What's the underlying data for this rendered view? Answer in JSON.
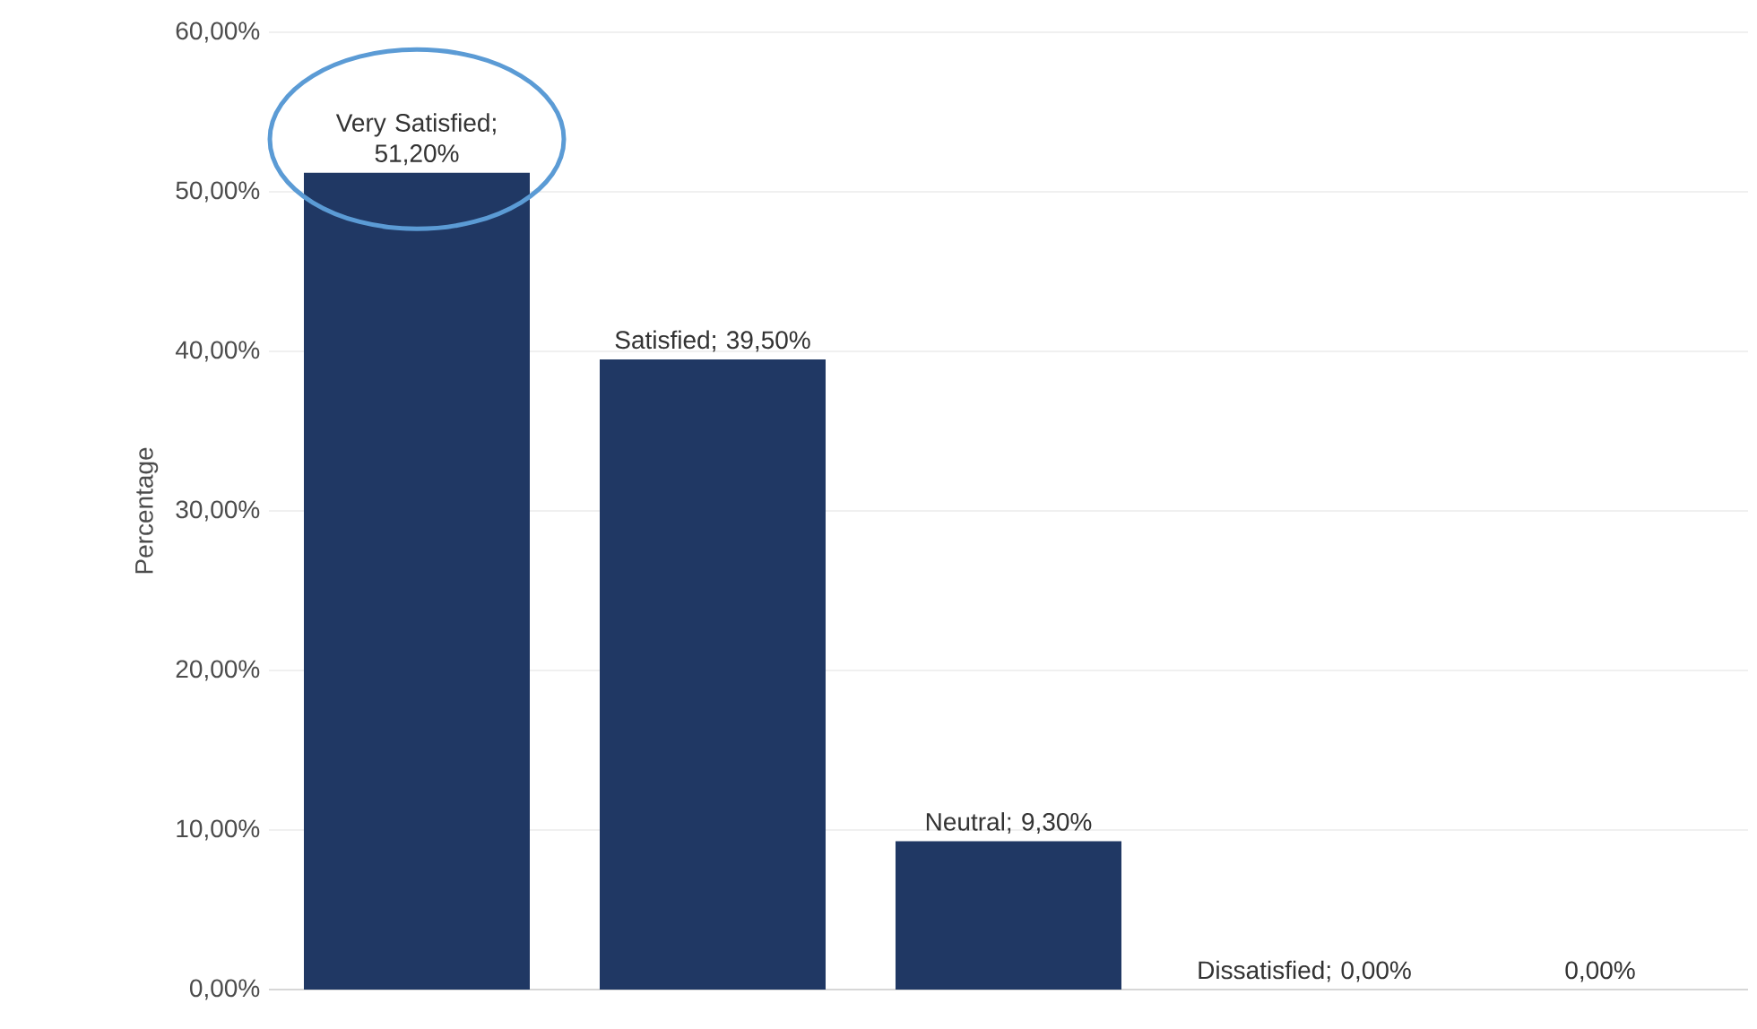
{
  "chart_data": {
    "type": "bar",
    "ylabel": "Percentage",
    "categories": [
      null,
      null,
      null,
      null,
      null
    ],
    "values": [
      51.2,
      39.5,
      9.3,
      0,
      0
    ],
    "value_labels": [
      "Very Satisfied; 51,20%",
      "Satisfied; 39,50%",
      "Neutral; 9,30%",
      "Dissatisfied; 0,00%",
      "0,00%"
    ],
    "color": "#203864",
    "ylim": [
      0,
      60
    ],
    "yticks": [
      {
        "value": 0,
        "label": "0,00%"
      },
      {
        "value": 10,
        "label": "10,00%"
      },
      {
        "value": 20,
        "label": "20,00%"
      },
      {
        "value": 30,
        "label": "30,00%"
      },
      {
        "value": 40,
        "label": "40,00%"
      },
      {
        "value": 50,
        "label": "50,00%"
      },
      {
        "value": 60,
        "label": "60,00%"
      }
    ],
    "grid": "y",
    "tick_labels": "y"
  }
}
